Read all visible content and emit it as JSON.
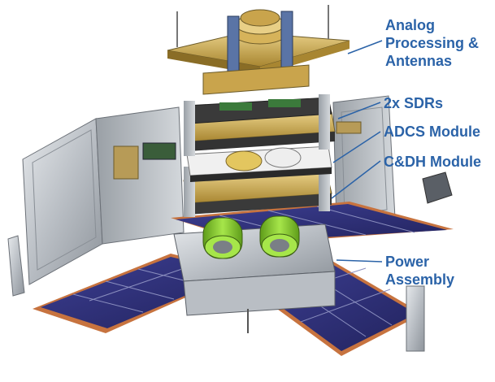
{
  "labels": {
    "analog": [
      "Analog",
      "Processing &",
      "Antennas"
    ],
    "sdr": "2x SDRs",
    "adcs": "ADCS Module",
    "cdh": "C&DH Module",
    "power": [
      "Power",
      "Assembly"
    ]
  },
  "colors": {
    "label_text": "#2b63a8",
    "leader_line": "#2b63a8",
    "solar_cell": "#2e2f7a",
    "aluminum": "#c9cdd2",
    "gold": "#c9a44c",
    "battery_green": "#8bd12e"
  }
}
